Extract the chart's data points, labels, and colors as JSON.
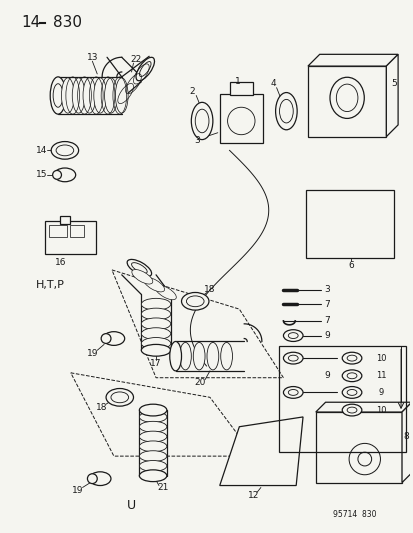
{
  "title": "14–830",
  "footer": "95714  830",
  "bg_color": "#f5f5f0",
  "fg_color": "#1a1a1a",
  "fig_width": 4.14,
  "fig_height": 5.33,
  "dpi": 100
}
